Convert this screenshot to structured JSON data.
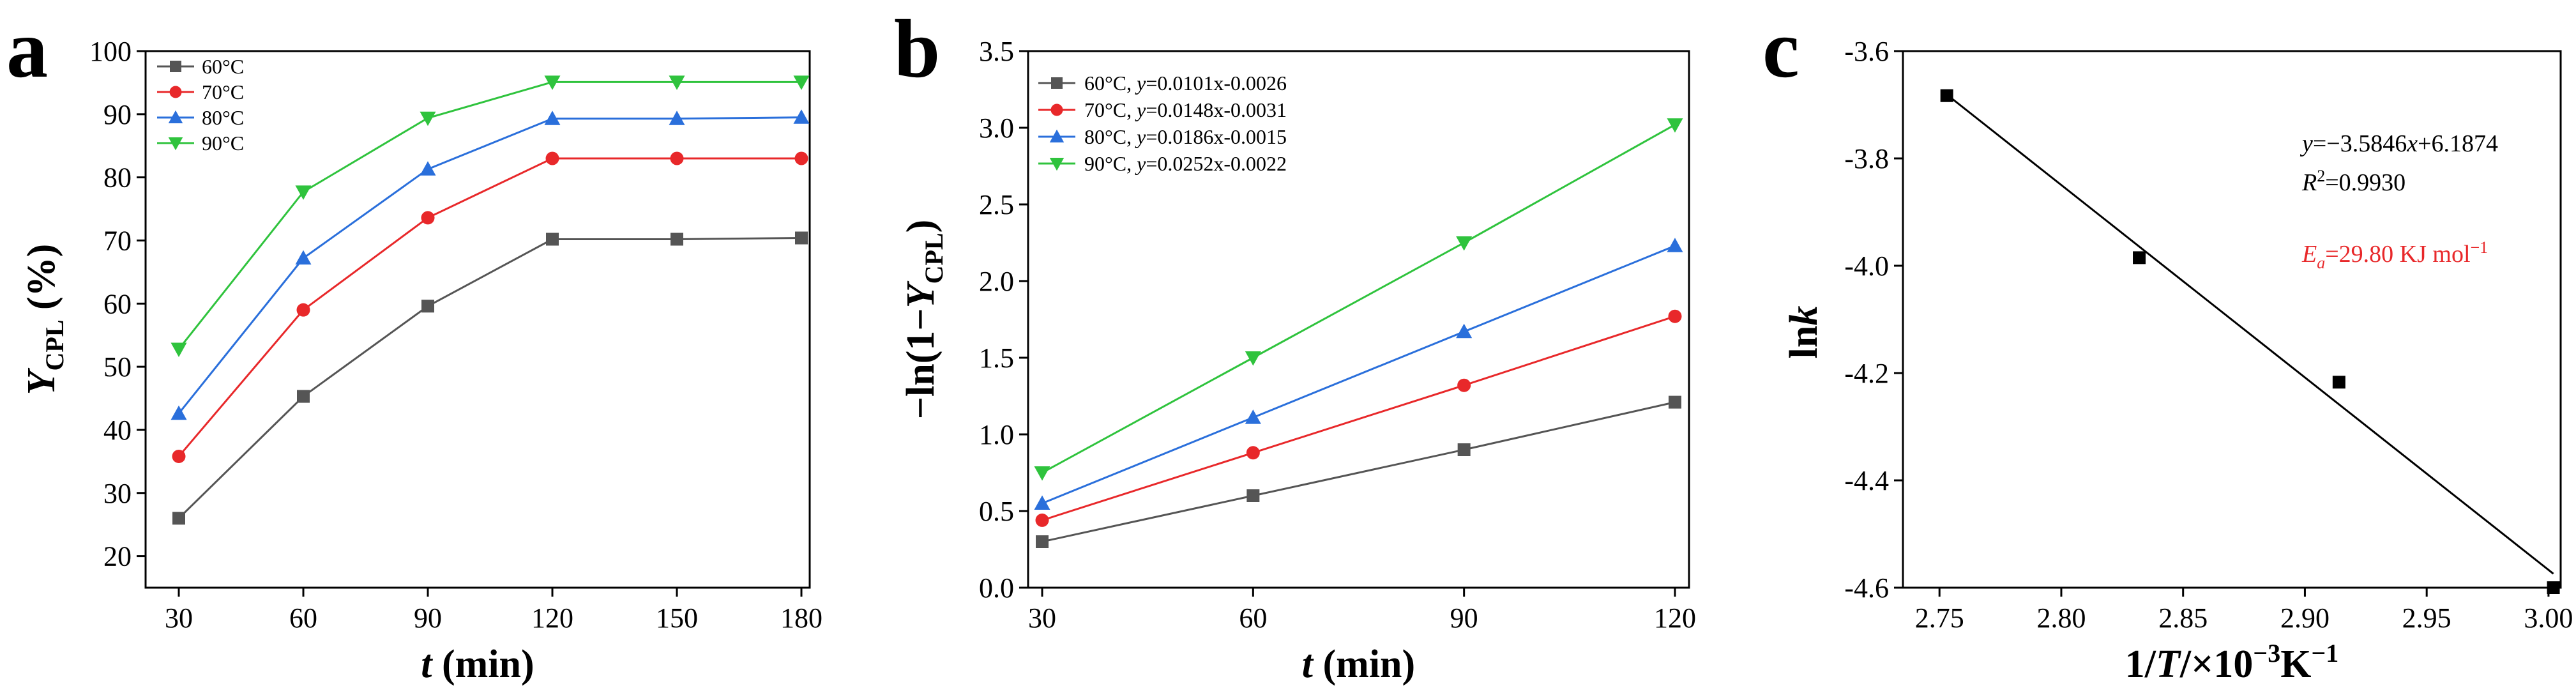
{
  "chart_data": [
    {
      "panel": "a",
      "type": "line",
      "xlabel": {
        "italic": "t",
        "rest": " (min)"
      },
      "ylabel": {
        "italic": "Y",
        "sub": "CPL",
        "rest": " (%)"
      },
      "xlim": [
        22,
        182
      ],
      "ylim": [
        15,
        100
      ],
      "xticks": [
        30,
        60,
        90,
        120,
        150,
        180
      ],
      "yticks": [
        20,
        30,
        40,
        50,
        60,
        70,
        80,
        90,
        100
      ],
      "legend_position": "top-left",
      "x": [
        30,
        60,
        90,
        120,
        150,
        180
      ],
      "series": [
        {
          "name": "60°C",
          "color": "#555555",
          "marker": "square",
          "values": [
            26.0,
            45.3,
            59.6,
            70.2,
            70.2,
            70.4
          ]
        },
        {
          "name": "70°C",
          "color": "#e8282a",
          "marker": "circle",
          "values": [
            35.8,
            59.0,
            73.6,
            83.0,
            83.0,
            83.0
          ]
        },
        {
          "name": "80°C",
          "color": "#2a6fdb",
          "marker": "triangle-up",
          "values": [
            42.6,
            67.2,
            81.3,
            89.3,
            89.3,
            89.5
          ]
        },
        {
          "name": "90°C",
          "color": "#2fc33d",
          "marker": "triangle-down",
          "values": [
            52.8,
            77.7,
            89.4,
            95.1,
            95.1,
            95.1
          ]
        }
      ]
    },
    {
      "panel": "b",
      "type": "line",
      "xlabel": {
        "italic": "t",
        "rest": " (min)"
      },
      "ylabel": {
        "prefix": "−ln(1−",
        "italic": "Y",
        "sub": "CPL",
        "rest": ")"
      },
      "xlim": [
        28,
        122
      ],
      "ylim": [
        0,
        3.5
      ],
      "xticks": [
        30,
        60,
        90,
        120
      ],
      "yticks": [
        0.0,
        0.5,
        1.0,
        1.5,
        2.0,
        2.5,
        3.0,
        3.5
      ],
      "ytick_labels": [
        "0.0",
        "0.5",
        "1.0",
        "1.5",
        "2.0",
        "2.5",
        "3.0",
        "3.5"
      ],
      "legend_position": "top-left",
      "x": [
        30,
        60,
        90,
        120
      ],
      "series": [
        {
          "name": "60°C",
          "equation": "0.0101x-0.0026",
          "color": "#555555",
          "marker": "square",
          "values": [
            0.3,
            0.6,
            0.9,
            1.21
          ]
        },
        {
          "name": "70°C",
          "equation": "0.0148x-0.0031",
          "color": "#e8282a",
          "marker": "circle",
          "values": [
            0.44,
            0.88,
            1.32,
            1.77
          ]
        },
        {
          "name": "80°C",
          "equation": "0.0186x-0.0015",
          "color": "#2a6fdb",
          "marker": "triangle-up",
          "values": [
            0.55,
            1.11,
            1.67,
            2.23
          ]
        },
        {
          "name": "90°C",
          "equation": "0.0252x-0.0022",
          "color": "#2fc33d",
          "marker": "triangle-down",
          "values": [
            0.75,
            1.5,
            2.25,
            3.02
          ]
        }
      ]
    },
    {
      "panel": "c",
      "type": "scatter",
      "xlabel": {
        "prefix": "1/",
        "italic": "T",
        "rest": "/×10",
        "sup": "−3",
        "rest2": "K",
        "sup2": "−1"
      },
      "ylabel": {
        "prefix": "ln",
        "italic": "k"
      },
      "xlim": [
        2.735,
        3.005
      ],
      "ylim": [
        -4.6,
        -3.6
      ],
      "xticks": [
        2.75,
        2.8,
        2.85,
        2.9,
        2.95,
        3.0
      ],
      "xtick_labels": [
        "2.75",
        "2.80",
        "2.85",
        "2.90",
        "2.95",
        "3.00"
      ],
      "yticks": [
        -3.6,
        -3.8,
        -4.0,
        -4.2,
        -4.4,
        -4.6
      ],
      "ytick_labels": [
        "-3.6",
        "-3.8",
        "-4.0",
        "-4.2",
        "-4.4",
        "-4.6"
      ],
      "points": {
        "x": [
          2.753,
          2.832,
          2.914,
          3.002
        ],
        "y": [
          -3.683,
          -3.985,
          -4.217,
          -4.6
        ]
      },
      "fit_line": {
        "x": [
          2.753,
          3.002
        ],
        "y": [
          -3.681,
          -4.574
        ]
      },
      "color": "#000000",
      "annotations": {
        "equation_prefix": "y",
        "equation_rest": "=−3.5846",
        "equation_var": "x",
        "equation_tail": "+6.1874",
        "r2_prefix": "R",
        "r2_sup": "2",
        "r2_rest": "=0.9930",
        "ea_prefix": "E",
        "ea_sub": "a",
        "ea_rest": "=29.80 KJ mol",
        "ea_sup": "−1",
        "ea_color": "#e8282a"
      }
    }
  ]
}
